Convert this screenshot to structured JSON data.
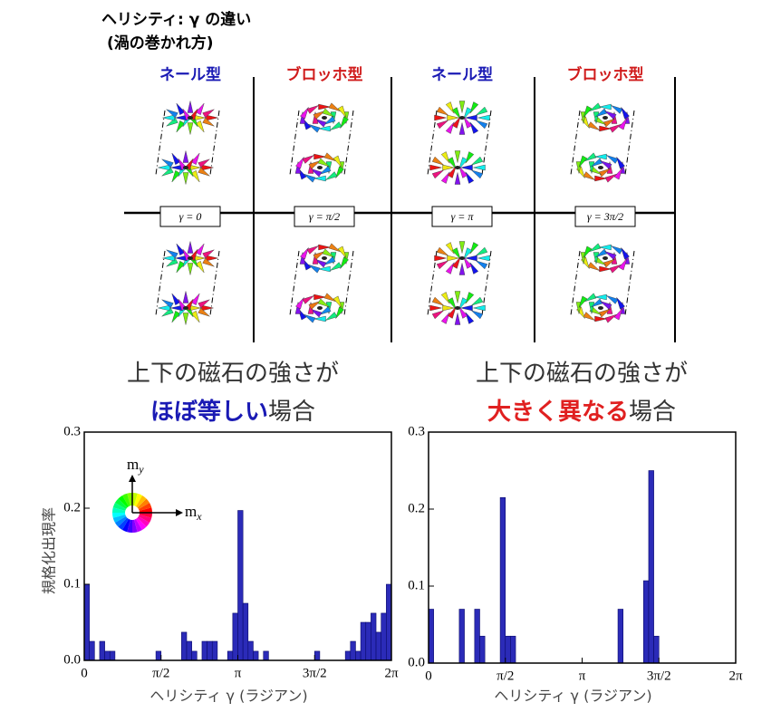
{
  "header": {
    "title_1": "ヘリシティ: γ の違い",
    "title_2": "(渦の巻かれ方)"
  },
  "columns": [
    {
      "label": "ネール型",
      "color": "#1a1ab4"
    },
    {
      "label": "ブロッホ型",
      "color": "#d01c1c"
    },
    {
      "label": "ネール型",
      "color": "#1a1ab4"
    },
    {
      "label": "ブロッホ型",
      "color": "#d01c1c"
    }
  ],
  "gammas": [
    "γ = 0",
    "γ = π/2",
    "γ = π",
    "γ = 3π/2"
  ],
  "captions": [
    {
      "line1": "上下の磁石の強さが",
      "highlight": "ほぼ等しい",
      "rest": "場合",
      "color": "#1a1ab4"
    },
    {
      "line1": "上下の磁石の強さが",
      "highlight": "大きく異なる",
      "rest": "場合",
      "color": "#e02020"
    }
  ],
  "chart_data": [
    {
      "type": "histogram",
      "ylabel": "規格化出現率",
      "xlabel": "ヘリシティ γ (ラジアン)",
      "color": "#2b2bb8",
      "inset_y": [
        "m",
        "y"
      ],
      "inset_x": [
        "m",
        "x"
      ],
      "bins": [
        0,
        0.1047,
        0.2094,
        0.3142,
        0.4189,
        0.5236,
        0.6283,
        0.733,
        0.8378,
        0.9425,
        1.0472,
        1.1519,
        1.2566,
        1.3614,
        1.4661,
        1.5708,
        1.6755,
        1.7802,
        1.885,
        1.9897,
        2.0944,
        2.1991,
        2.3038,
        2.4086,
        2.5133,
        2.618,
        2.7227,
        2.8274,
        2.9322,
        3.0369,
        3.1416,
        3.2463,
        3.351,
        3.4558,
        3.5605,
        3.6652,
        3.7699,
        3.8746,
        3.9794,
        4.0841,
        4.1888,
        4.2935,
        4.3982,
        4.5029,
        4.6077,
        4.7124,
        4.8171,
        4.9218,
        5.0265,
        5.1313,
        5.236,
        5.3407,
        5.4454,
        5.5501,
        5.6549,
        5.7596,
        5.8643,
        5.969,
        6.0737,
        6.1785,
        6.2832
      ],
      "values": [
        0.1,
        0.025,
        0,
        0.025,
        0.012,
        0.012,
        0,
        0,
        0,
        0,
        0,
        0,
        0,
        0,
        0.012,
        0,
        0,
        0,
        0,
        0.037,
        0.025,
        0.012,
        0,
        0.025,
        0.025,
        0.025,
        0,
        0,
        0.012,
        0.062,
        0.197,
        0.075,
        0.025,
        0.012,
        0,
        0.012,
        0,
        0,
        0,
        0,
        0,
        0,
        0,
        0,
        0,
        0.012,
        0,
        0,
        0,
        0,
        0,
        0.012,
        0.025,
        0.012,
        0.05,
        0.05,
        0.062,
        0.037,
        0.062,
        0.1
      ],
      "xlim": [
        0,
        6.2832
      ],
      "xticks": [
        0,
        {
          "value": 1.5708,
          "label": "π/2"
        },
        {
          "value": 3.1416,
          "label": "π"
        },
        {
          "value": 4.7124,
          "label": "3π/2"
        },
        {
          "value": 6.2832,
          "label": "2π"
        }
      ],
      "ylim": [
        0,
        0.3
      ],
      "yticks": [
        {
          "value": 0,
          "label": "0.0"
        },
        0.1,
        0.2,
        0.3
      ]
    },
    {
      "type": "histogram",
      "xlabel": "ヘリシティ γ (ラジアン)",
      "color": "#2b2bb8",
      "bins": [
        0,
        0.1047,
        0.2094,
        0.3142,
        0.4189,
        0.5236,
        0.6283,
        0.733,
        0.8378,
        0.9425,
        1.0472,
        1.1519,
        1.2566,
        1.3614,
        1.4661,
        1.5708,
        1.6755,
        1.7802,
        1.885,
        1.9897,
        2.0944,
        2.1991,
        2.3038,
        2.4086,
        2.5133,
        2.618,
        2.7227,
        2.8274,
        2.9322,
        3.0369,
        3.1416,
        3.2463,
        3.351,
        3.4558,
        3.5605,
        3.6652,
        3.7699,
        3.8746,
        3.9794,
        4.0841,
        4.1888,
        4.2935,
        4.3982,
        4.5029,
        4.6077,
        4.7124,
        4.8171,
        4.9218,
        5.0265,
        5.1313,
        5.236,
        5.3407,
        5.4454,
        5.5501,
        5.6549,
        5.7596,
        5.8643,
        5.969,
        6.0737,
        6.1785,
        6.2832
      ],
      "values": [
        0.07,
        0,
        0,
        0,
        0,
        0,
        0.07,
        0,
        0,
        0.07,
        0.035,
        0,
        0,
        0,
        0.215,
        0.035,
        0.035,
        0,
        0,
        0,
        0,
        0,
        0,
        0,
        0,
        0,
        0,
        0,
        0,
        0,
        0,
        0,
        0,
        0,
        0,
        0,
        0,
        0.07,
        0,
        0,
        0,
        0,
        0.107,
        0.25,
        0.035,
        0,
        0,
        0,
        0,
        0,
        0,
        0,
        0,
        0,
        0,
        0,
        0,
        0,
        0,
        0
      ],
      "xlim": [
        0,
        6.2832
      ],
      "xticks": [
        0,
        {
          "value": 1.5708,
          "label": "π/2"
        },
        {
          "value": 3.1416,
          "label": "π"
        },
        {
          "value": 4.7124,
          "label": "3π/2"
        },
        {
          "value": 6.2832,
          "label": "2π"
        }
      ],
      "ylim": [
        0,
        0.3
      ],
      "yticks": [
        {
          "value": 0,
          "label": "0.0"
        },
        0.1,
        0.2,
        0.3
      ]
    }
  ]
}
